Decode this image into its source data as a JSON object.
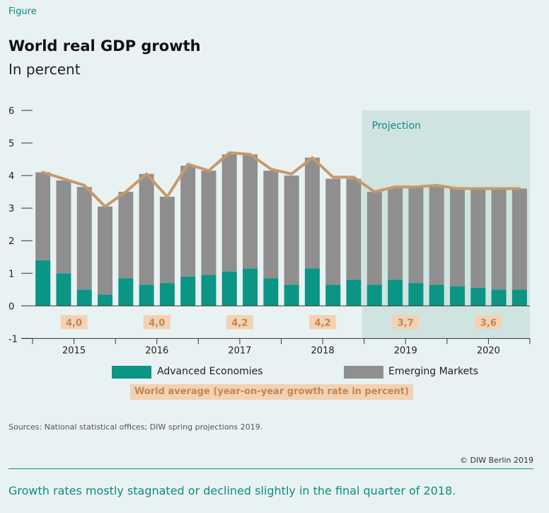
{
  "figure_label": "Figure",
  "title": "World real GDP growth",
  "subtitle": "In percent",
  "sources": "Sources: National statistical offices; DIW spring projections 2019.",
  "copyright": "© DIW Berlin 2019",
  "caption": "Growth rates mostly stagnated or declined slightly in the final quarter of 2018.",
  "colors": {
    "advanced": "#0a9585",
    "emerging": "#8f8f8f",
    "world_line": "#c69a6c",
    "projection_bg": "#cfe4e1",
    "label_bg": "#f2d2b4",
    "label_text": "#c5854f",
    "accent": "#0f8c7e"
  },
  "chart_data": {
    "type": "bar",
    "stacked": true,
    "x": [
      "2015Q1",
      "2015Q2",
      "2015Q3",
      "2015Q4",
      "2016Q1",
      "2016Q2",
      "2016Q3",
      "2016Q4",
      "2017Q1",
      "2017Q2",
      "2017Q3",
      "2017Q4",
      "2018Q1",
      "2018Q2",
      "2018Q3",
      "2018Q4",
      "2019Q1",
      "2019Q2",
      "2019Q3",
      "2019Q4",
      "2020Q1",
      "2020Q2",
      "2020Q3",
      "2020Q4"
    ],
    "year_labels": [
      "2015",
      "2016",
      "2017",
      "2018",
      "2019",
      "2020"
    ],
    "y_ticks": [
      "6",
      "5",
      "4",
      "3",
      "2",
      "1",
      "0",
      "-1"
    ],
    "ylim": [
      -1,
      6
    ],
    "projection_label": "Projection",
    "projection_start_index": 16,
    "series": [
      {
        "name": "Advanced Economies",
        "values": [
          1.4,
          1.0,
          0.5,
          0.35,
          0.85,
          0.65,
          0.7,
          0.9,
          0.95,
          1.05,
          1.15,
          0.85,
          0.65,
          1.15,
          0.65,
          0.8,
          0.65,
          0.8,
          0.7,
          0.65,
          0.6,
          0.55,
          0.5,
          0.5
        ]
      },
      {
        "name": "Emerging Markets",
        "values": [
          2.7,
          2.85,
          3.15,
          2.7,
          2.65,
          3.4,
          2.65,
          3.4,
          3.2,
          3.6,
          3.5,
          3.3,
          3.35,
          3.4,
          3.25,
          3.1,
          2.85,
          2.85,
          2.95,
          3.0,
          3.0,
          3.05,
          3.1,
          3.1
        ]
      }
    ],
    "world_average": {
      "name": "World average (year-on-year growth rate in percent)",
      "values": [
        4.1,
        3.9,
        3.7,
        3.05,
        3.5,
        4.05,
        3.35,
        4.35,
        4.15,
        4.7,
        4.65,
        4.2,
        4.05,
        4.55,
        3.95,
        3.95,
        3.5,
        3.65,
        3.65,
        3.7,
        3.6,
        3.6,
        3.6,
        3.6
      ]
    },
    "annual_labels": [
      "4,0",
      "4,0",
      "4,2",
      "4,2",
      "3,7",
      "3,6"
    ],
    "grid": false
  }
}
